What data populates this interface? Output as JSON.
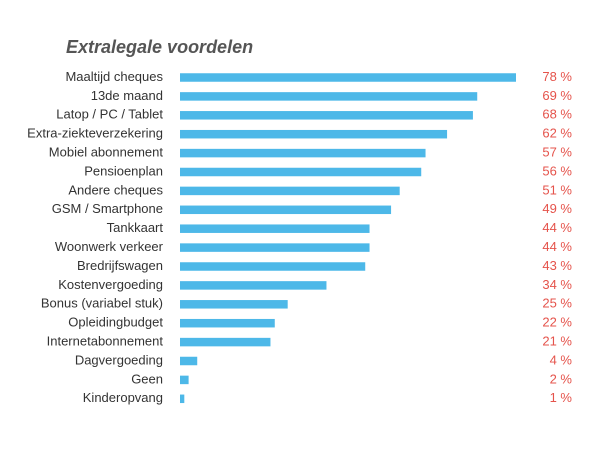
{
  "chart_data": {
    "type": "bar",
    "orientation": "horizontal",
    "title": "Extralegale voordelen",
    "xlabel": "",
    "ylabel": "",
    "xlim": [
      0,
      78
    ],
    "grid": false,
    "value_suffix": " %",
    "colors": {
      "bar": "#4db8e8",
      "value_label": "#e5534b",
      "category_label": "#333333",
      "title": "#555555"
    },
    "categories": [
      "Maaltijd cheques",
      "13de maand",
      "Latop / PC / Tablet",
      "Extra-ziekteverzekering",
      "Mobiel abonnement",
      "Pensioenplan",
      "Andere cheques",
      "GSM / Smartphone",
      "Tankkaart",
      "Woonwerk verkeer",
      "Bredrijfswagen",
      "Kostenvergoeding",
      "Bonus (variabel stuk)",
      "Opleidingbudget",
      "Internetabonnement",
      "Dagvergoeding",
      "Geen",
      "Kinderopvang"
    ],
    "values": [
      78,
      69,
      68,
      62,
      57,
      56,
      51,
      49,
      44,
      44,
      43,
      34,
      25,
      22,
      21,
      4,
      2,
      1
    ]
  }
}
